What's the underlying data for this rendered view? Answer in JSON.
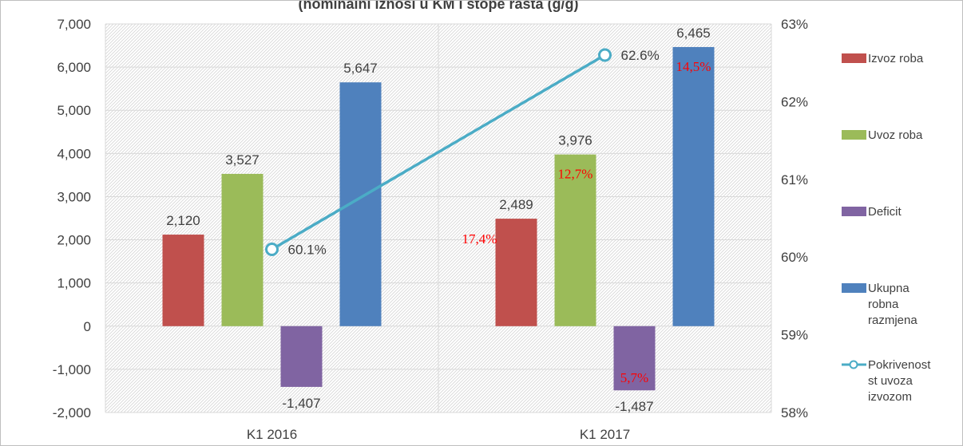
{
  "chart_data": {
    "type": "bar",
    "title": "(nominalni iznosi u KM i stope rasta (g/g)",
    "categories": [
      "K1  2016",
      "K1  2017"
    ],
    "ylim": [
      -2000,
      7000
    ],
    "yticks": [
      "7,000",
      "6,000",
      "5,000",
      "4,000",
      "3,000",
      "2,000",
      "1,000",
      "0",
      "-1,000",
      "-2,000"
    ],
    "y2lim": [
      58,
      63
    ],
    "y2ticks": [
      "63%",
      "62%",
      "61%",
      "60%",
      "59%",
      "58%"
    ],
    "series": [
      {
        "name": "Izvoz roba",
        "color": "#C0504D",
        "values": [
          2120,
          2489
        ],
        "labels": [
          "2,120",
          "2,489"
        ],
        "growth": [
          "",
          "17,4%"
        ]
      },
      {
        "name": "Uvoz roba",
        "color": "#9BBB59",
        "values": [
          3527,
          3976
        ],
        "labels": [
          "3,527",
          "3,976"
        ],
        "growth": [
          "",
          "12,7%"
        ]
      },
      {
        "name": "Deficit",
        "color": "#8064A2",
        "values": [
          -1407,
          -1487
        ],
        "labels": [
          "-1,407",
          "-1,487"
        ],
        "growth": [
          "",
          "5,7%"
        ]
      },
      {
        "name": "Ukupna robna razmjena",
        "color": "#4F81BD",
        "values": [
          5647,
          6465
        ],
        "labels": [
          "5,647",
          "6,465"
        ],
        "growth": [
          "",
          "14,5%"
        ]
      }
    ],
    "line": {
      "name": "Pokrivenost uvoza izvozom",
      "color": "#4BACC6",
      "values": [
        60.1,
        62.6
      ],
      "labels": [
        "60.1%",
        "62.6%"
      ]
    },
    "legend": {
      "position": "right",
      "items": [
        {
          "lines": [
            "Izvoz roba"
          ],
          "type": "bar",
          "color": "#C0504D"
        },
        {
          "lines": [
            "Uvoz roba"
          ],
          "type": "bar",
          "color": "#9BBB59"
        },
        {
          "lines": [
            "Deficit"
          ],
          "type": "bar",
          "color": "#8064A2"
        },
        {
          "lines": [
            "Ukupna",
            "robna",
            "razmjena"
          ],
          "type": "bar",
          "color": "#4F81BD"
        },
        {
          "lines": [
            "Pokrivenost",
            "st uvoza",
            "izvozom"
          ],
          "type": "line",
          "color": "#4BACC6"
        }
      ]
    },
    "growth_color": "#FF0000",
    "grid": true
  }
}
